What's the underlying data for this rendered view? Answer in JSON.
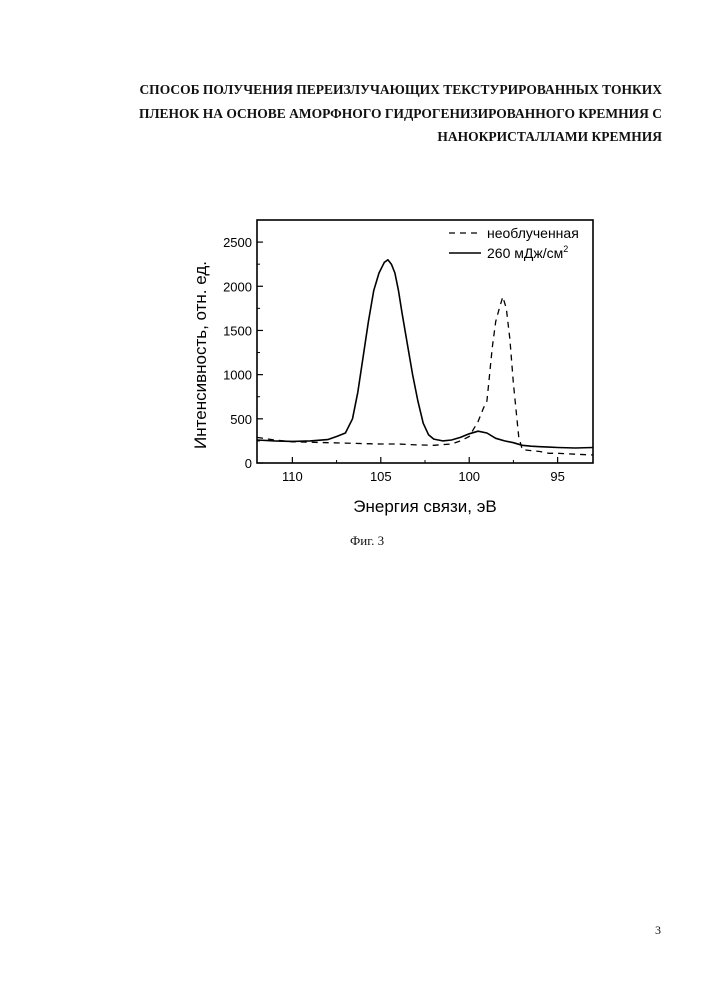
{
  "title_lines": [
    "СПОСОБ ПОЛУЧЕНИЯ ПЕРЕИЗЛУЧАЮЩИХ ТЕКСТУРИРОВАННЫХ ТОНКИХ",
    "ПЛЕНОК НА ОСНОВЕ АМОРФНОГО ГИДРОГЕНИЗИРОВАННОГО КРЕМНИЯ С",
    "НАНОКРИСТАЛЛАМИ КРЕМНИЯ"
  ],
  "caption": "Фиг. 3",
  "page_number": "3",
  "chart_data": {
    "type": "line",
    "title": "",
    "xlabel": "Энергия связи, эВ",
    "ylabel": "Интенсивность, отн. ед.",
    "xlim": [
      112,
      93
    ],
    "ylim": [
      0,
      2750
    ],
    "x_reversed": true,
    "xticks": [
      110,
      105,
      100,
      95
    ],
    "yticks": [
      0,
      500,
      1000,
      1500,
      2000,
      2500
    ],
    "grid": false,
    "legend_position": "top-right",
    "series": [
      {
        "name": "необлученная",
        "style": "dashed",
        "color": "#000000",
        "x": [
          112,
          111,
          110,
          109,
          108,
          107,
          106,
          105,
          104,
          103,
          102,
          101,
          100.5,
          100,
          99.5,
          99.2,
          99,
          98.9,
          98.7,
          98.5,
          98.3,
          98.1,
          97.9,
          97.7,
          97.5,
          97.2,
          97,
          96.5,
          96,
          95.5,
          95,
          94,
          93
        ],
        "values": [
          290,
          260,
          240,
          235,
          230,
          225,
          220,
          215,
          215,
          205,
          200,
          215,
          250,
          300,
          470,
          620,
          700,
          900,
          1300,
          1600,
          1750,
          1880,
          1750,
          1400,
          900,
          300,
          150,
          140,
          130,
          110,
          110,
          100,
          90
        ]
      },
      {
        "name": "260 мДж/см²",
        "name_main": "260 мДж/см",
        "name_sup": "2",
        "style": "solid",
        "color": "#000000",
        "x": [
          112,
          111,
          110,
          109,
          108,
          107.5,
          107,
          106.6,
          106.3,
          106,
          105.7,
          105.4,
          105.1,
          104.8,
          104.6,
          104.4,
          104.2,
          104,
          103.8,
          103.5,
          103.2,
          102.9,
          102.6,
          102.3,
          102,
          101.5,
          101,
          100.5,
          100,
          99.5,
          99,
          98.5,
          98,
          97.5,
          97,
          96.5,
          96,
          95.5,
          95,
          94,
          93
        ],
        "values": [
          260,
          250,
          245,
          250,
          265,
          300,
          340,
          500,
          800,
          1200,
          1600,
          1950,
          2150,
          2270,
          2300,
          2250,
          2150,
          1950,
          1700,
          1350,
          1000,
          700,
          450,
          320,
          270,
          250,
          260,
          290,
          330,
          360,
          340,
          280,
          250,
          230,
          200,
          190,
          185,
          180,
          175,
          170,
          175
        ]
      }
    ]
  }
}
